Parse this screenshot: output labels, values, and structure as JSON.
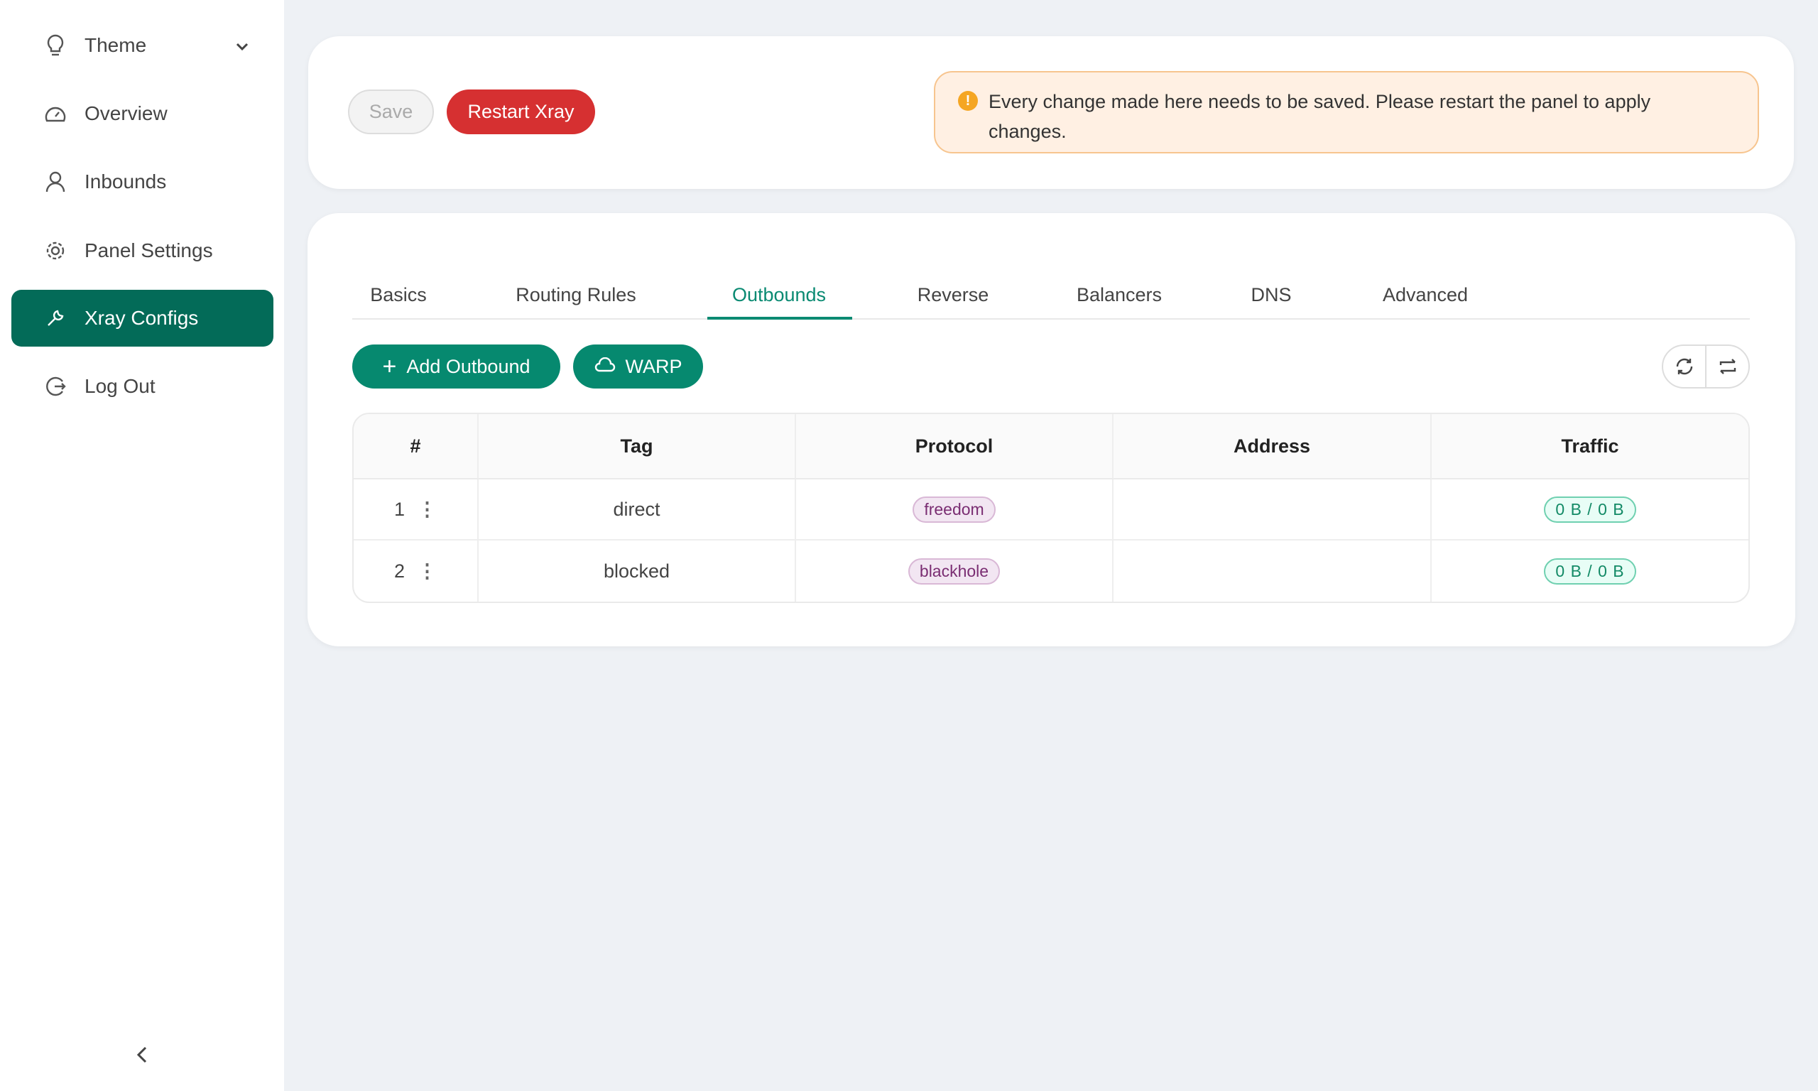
{
  "sidebar": {
    "items": [
      {
        "label": "Theme",
        "icon": "bulb-icon"
      },
      {
        "label": "Overview",
        "icon": "dashboard-icon"
      },
      {
        "label": "Inbounds",
        "icon": "user-icon"
      },
      {
        "label": "Panel Settings",
        "icon": "gear-icon"
      },
      {
        "label": "Xray Configs",
        "icon": "wrench-icon",
        "active": true
      },
      {
        "label": "Log Out",
        "icon": "logout-icon"
      }
    ]
  },
  "toolbar": {
    "save_label": "Save",
    "restart_label": "Restart Xray"
  },
  "alert": {
    "text": "Every change made here needs to be saved. Please restart the panel to apply changes."
  },
  "tabs": [
    "Basics",
    "Routing Rules",
    "Outbounds",
    "Reverse",
    "Balancers",
    "DNS",
    "Advanced"
  ],
  "active_tab": "Outbounds",
  "actions": {
    "add_label": "Add Outbound",
    "warp_label": "WARP"
  },
  "table": {
    "headers": [
      "#",
      "Tag",
      "Protocol",
      "Address",
      "Traffic"
    ],
    "rows": [
      {
        "num": "1",
        "tag": "direct",
        "protocol": "freedom",
        "address": "",
        "traffic": "0 B / 0 B"
      },
      {
        "num": "2",
        "tag": "blocked",
        "protocol": "blackhole",
        "address": "",
        "traffic": "0 B / 0 B"
      }
    ]
  },
  "colors": {
    "primary": "#036b58",
    "accent": "#0a8a72",
    "danger": "#d63031",
    "warning_bg": "#fff0e3"
  }
}
